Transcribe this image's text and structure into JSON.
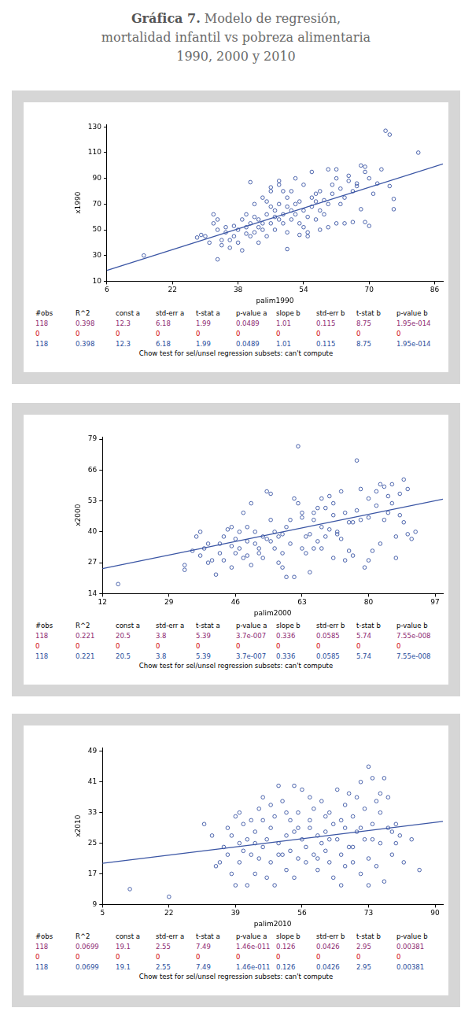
{
  "header": {
    "label": "Gráfica 7.",
    "lines": [
      "Modelo de regresión,",
      "mortalidad infantil vs pobreza alimentaria",
      "1990, 2000 y 2010"
    ]
  },
  "chart_data": [
    {
      "type": "scatter",
      "x_label": "palim1990",
      "y_label": "x1990",
      "xlim": [
        6,
        88
      ],
      "ylim": [
        10,
        132
      ],
      "xticks": [
        6,
        22,
        38,
        54,
        70,
        86
      ],
      "yticks": [
        10,
        30,
        50,
        70,
        90,
        110,
        130
      ],
      "grid": false,
      "color": "#3a55a4",
      "marker": "circle-open",
      "x": [
        15,
        28,
        29,
        30,
        31,
        32,
        32,
        33,
        33,
        34,
        34,
        35,
        35,
        33,
        36,
        37,
        37,
        38,
        38,
        39,
        39,
        40,
        40,
        40,
        41,
        41,
        41,
        42,
        42,
        42,
        43,
        43,
        43,
        44,
        44,
        44,
        45,
        45,
        45,
        46,
        46,
        46,
        46,
        47,
        47,
        47,
        48,
        48,
        48,
        48,
        49,
        49,
        49,
        50,
        50,
        50,
        50,
        51,
        51,
        51,
        52,
        52,
        52,
        53,
        53,
        54,
        54,
        54,
        55,
        55,
        55,
        56,
        56,
        56,
        57,
        57,
        57,
        58,
        58,
        58,
        59,
        59,
        60,
        60,
        60,
        61,
        61,
        62,
        62,
        62,
        63,
        63,
        64,
        64,
        65,
        65,
        66,
        66,
        67,
        67,
        68,
        68,
        69,
        69,
        69,
        70,
        70,
        71,
        72,
        73,
        74,
        75,
        75,
        76,
        76,
        82,
        36,
        53
      ],
      "values": [
        30,
        44,
        46,
        45,
        40,
        55,
        62,
        58,
        50,
        42,
        38,
        52,
        48,
        27,
        36,
        45,
        53,
        50,
        40,
        34,
        58,
        47,
        52,
        62,
        55,
        45,
        87,
        60,
        70,
        48,
        52,
        58,
        40,
        75,
        55,
        50,
        72,
        62,
        45,
        68,
        80,
        83,
        55,
        50,
        60,
        65,
        88,
        85,
        70,
        58,
        62,
        80,
        55,
        75,
        68,
        35,
        48,
        58,
        65,
        80,
        70,
        62,
        90,
        55,
        72,
        52,
        85,
        65,
        60,
        45,
        48,
        75,
        68,
        95,
        58,
        72,
        78,
        65,
        50,
        80,
        62,
        73,
        70,
        97,
        52,
        78,
        85,
        55,
        90,
        97,
        70,
        82,
        75,
        55,
        88,
        92,
        56,
        80,
        86,
        84,
        100,
        66,
        99,
        95,
        56,
        90,
        53,
        78,
        86,
        97,
        127,
        124,
        84,
        66,
        74,
        110,
        42,
        46
      ],
      "regression": {
        "intercept": 12.3,
        "slope": 1.01,
        "color": "#3a55a4",
        "line_style": "solid"
      },
      "stats": {
        "header": {
          "color": "#000000",
          "cells": [
            "#obs",
            "R^2",
            "const a",
            "std-err a",
            "t-stat a",
            "p-value a",
            "slope b",
            "std-err b",
            "t-stat b",
            "p-value b"
          ]
        },
        "rows": [
          {
            "color": "#8e2a72",
            "cells": [
              "118",
              "0.398",
              "12.3",
              "6.18",
              "1.99",
              "0.0489",
              "1.01",
              "0.115",
              "8.75",
              "1.95e-014"
            ]
          },
          {
            "color": "#d00000",
            "cells": [
              "0",
              "0",
              "0",
              "0",
              "0",
              "0",
              "0",
              "0",
              "0",
              "0"
            ]
          },
          {
            "color": "#2a4d9c",
            "cells": [
              "118",
              "0.398",
              "12.3",
              "6.18",
              "1.99",
              "0.0489",
              "1.01",
              "0.115",
              "8.75",
              "1.95e-014"
            ]
          }
        ]
      },
      "footnote": "Chow test for sel/unsel regression subsets: can't compute"
    },
    {
      "type": "scatter",
      "x_label": "palim2000",
      "y_label": "x2000",
      "xlim": [
        12,
        99
      ],
      "ylim": [
        14,
        80
      ],
      "xticks": [
        12,
        29,
        46,
        63,
        80,
        97
      ],
      "yticks": [
        14,
        27,
        40,
        53,
        66,
        79
      ],
      "grid": false,
      "color": "#3a55a4",
      "marker": "circle-open",
      "x": [
        16,
        33,
        33,
        35,
        36,
        37,
        37,
        38,
        39,
        40,
        41,
        42,
        42,
        43,
        43,
        44,
        45,
        45,
        46,
        46,
        47,
        47,
        48,
        48,
        49,
        49,
        50,
        50,
        51,
        51,
        52,
        52,
        53,
        53,
        54,
        54,
        55,
        55,
        56,
        56,
        57,
        57,
        58,
        58,
        59,
        59,
        60,
        60,
        61,
        61,
        62,
        62,
        63,
        63,
        64,
        64,
        65,
        65,
        66,
        66,
        67,
        67,
        68,
        68,
        69,
        69,
        70,
        70,
        71,
        71,
        72,
        72,
        73,
        73,
        74,
        74,
        75,
        75,
        76,
        76,
        77,
        77,
        78,
        78,
        79,
        80,
        80,
        81,
        82,
        82,
        83,
        83,
        84,
        84,
        85,
        85,
        86,
        86,
        87,
        87,
        88,
        88,
        89,
        89,
        90,
        90,
        91,
        92,
        58,
        45,
        55,
        63,
        39,
        71,
        66,
        80,
        68,
        49
      ],
      "values": [
        18,
        26,
        24,
        32,
        38,
        40,
        30,
        33,
        35,
        28,
        22,
        31,
        35,
        38,
        28,
        41,
        34,
        25,
        37,
        31,
        40,
        33,
        48,
        29,
        42,
        36,
        52,
        26,
        35,
        40,
        33,
        31,
        38,
        29,
        37,
        57,
        36,
        56,
        33,
        40,
        38,
        27,
        39,
        31,
        42,
        21,
        45,
        35,
        21,
        54,
        76,
        52,
        48,
        46,
        38,
        31,
        39,
        23,
        45,
        33,
        50,
        36,
        54,
        42,
        50,
        38,
        55,
        41,
        52,
        29,
        39,
        40,
        57,
        37,
        28,
        48,
        44,
        32,
        44,
        30,
        49,
        70,
        58,
        45,
        25,
        46,
        54,
        32,
        51,
        57,
        60,
        35,
        45,
        59,
        55,
        48,
        52,
        60,
        38,
        29,
        56,
        47,
        62,
        44,
        58,
        39,
        37,
        40,
        25,
        42,
        45,
        33,
        27,
        47,
        48,
        28,
        33,
        30
      ],
      "regression": {
        "intercept": 20.5,
        "slope": 0.336,
        "color": "#3a55a4",
        "line_style": "solid"
      },
      "stats": {
        "header": {
          "color": "#000000",
          "cells": [
            "#obs",
            "R^2",
            "const a",
            "std-err a",
            "t-stat a",
            "p-value a",
            "slope b",
            "std-err b",
            "t-stat b",
            "p-value b"
          ]
        },
        "rows": [
          {
            "color": "#8e2a72",
            "cells": [
              "118",
              "0.221",
              "20.5",
              "3.8",
              "5.39",
              "3.7e-007",
              "0.336",
              "0.0585",
              "5.74",
              "7.55e-008"
            ]
          },
          {
            "color": "#d00000",
            "cells": [
              "0",
              "0",
              "0",
              "0",
              "0",
              "0",
              "0",
              "0",
              "0",
              "0"
            ]
          },
          {
            "color": "#2a4d9c",
            "cells": [
              "118",
              "0.221",
              "20.5",
              "3.8",
              "5.39",
              "3.7e-007",
              "0.336",
              "0.0585",
              "5.74",
              "7.55e-008"
            ]
          }
        ]
      },
      "footnote": "Chow test for sel/unsel regression subsets: can't compute"
    },
    {
      "type": "scatter",
      "x_label": "palim2010",
      "y_label": "x2010",
      "xlim": [
        5,
        92
      ],
      "ylim": [
        9,
        50
      ],
      "xticks": [
        5,
        22,
        39,
        56,
        73,
        90
      ],
      "yticks": [
        9,
        17,
        25,
        33,
        41,
        49
      ],
      "grid": false,
      "color": "#3a55a4",
      "marker": "circle-open",
      "x": [
        12,
        22,
        31,
        33,
        34,
        35,
        36,
        37,
        37,
        38,
        38,
        39,
        39,
        40,
        40,
        41,
        41,
        42,
        42,
        43,
        43,
        44,
        44,
        45,
        45,
        46,
        46,
        47,
        47,
        48,
        48,
        49,
        49,
        50,
        50,
        51,
        51,
        52,
        52,
        53,
        53,
        54,
        54,
        55,
        55,
        56,
        56,
        57,
        57,
        58,
        58,
        59,
        59,
        60,
        60,
        61,
        61,
        62,
        62,
        63,
        63,
        64,
        64,
        65,
        65,
        66,
        66,
        67,
        67,
        68,
        68,
        69,
        69,
        70,
        70,
        71,
        71,
        72,
        72,
        73,
        73,
        73,
        74,
        74,
        75,
        75,
        76,
        76,
        77,
        77,
        78,
        78,
        79,
        79,
        80,
        80,
        81,
        82,
        84,
        86,
        46,
        52,
        55,
        58,
        60,
        63,
        66,
        69,
        71,
        74,
        40,
        44,
        48,
        50,
        54,
        62,
        67,
        76
      ],
      "values": [
        13,
        11,
        30,
        27,
        19,
        20,
        24,
        29,
        22,
        27,
        17,
        14,
        32,
        33,
        25,
        23,
        30,
        14,
        26,
        22,
        31,
        28,
        17,
        34,
        21,
        37,
        24,
        26,
        16,
        29,
        20,
        14,
        32,
        40,
        25,
        36,
        22,
        27,
        18,
        31,
        23,
        28,
        16,
        33,
        21,
        39,
        26,
        24,
        20,
        31,
        29,
        22,
        34,
        27,
        18,
        25,
        36,
        23,
        28,
        20,
        33,
        30,
        16,
        39,
        26,
        22,
        14,
        29,
        35,
        38,
        24,
        32,
        20,
        37,
        28,
        41,
        17,
        34,
        26,
        45,
        21,
        14,
        30,
        42,
        36,
        19,
        33,
        25,
        42,
        15,
        37,
        29,
        28,
        22,
        30,
        25,
        27,
        20,
        26,
        18,
        31,
        33,
        29,
        37,
        21,
        26,
        31,
        24,
        29,
        26,
        20,
        25,
        35,
        22,
        40,
        32,
        19,
        38
      ],
      "regression": {
        "intercept": 19.1,
        "slope": 0.126,
        "color": "#3a55a4",
        "line_style": "solid"
      },
      "stats": {
        "header": {
          "color": "#000000",
          "cells": [
            "#obs",
            "R^2",
            "const a",
            "std-err a",
            "t-stat a",
            "p-value a",
            "slope b",
            "std-err b",
            "t-stat b",
            "p-value b"
          ]
        },
        "rows": [
          {
            "color": "#8e2a72",
            "cells": [
              "118",
              "0.0699",
              "19.1",
              "2.55",
              "7.49",
              "1.46e-011",
              "0.126",
              "0.0426",
              "2.95",
              "0.00381"
            ]
          },
          {
            "color": "#d00000",
            "cells": [
              "0",
              "0",
              "0",
              "0",
              "0",
              "0",
              "0",
              "0",
              "0",
              "0"
            ]
          },
          {
            "color": "#2a4d9c",
            "cells": [
              "118",
              "0.0699",
              "19.1",
              "2.55",
              "7.49",
              "1.46e-011",
              "0.126",
              "0.0426",
              "2.95",
              "0.00381"
            ]
          }
        ]
      },
      "footnote": "Chow test for sel/unsel regression subsets: can't compute"
    }
  ]
}
